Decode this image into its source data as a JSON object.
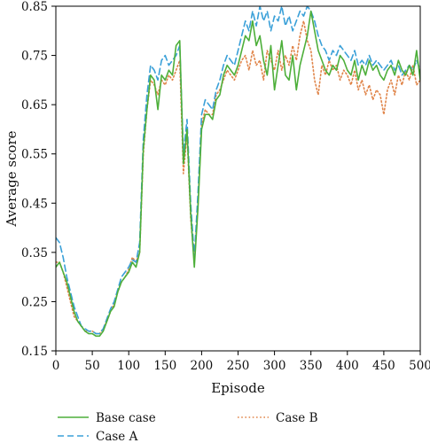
{
  "chart_data": {
    "type": "line",
    "xlabel": "Episode",
    "ylabel": "Average score",
    "xlim": [
      0,
      500
    ],
    "ylim": [
      0.15,
      0.85
    ],
    "x_ticks": [
      "0",
      "50",
      "100",
      "150",
      "200",
      "250",
      "300",
      "350",
      "400",
      "450",
      "500"
    ],
    "y_ticks": [
      "0.15",
      "0.25",
      "0.35",
      "0.45",
      "0.55",
      "0.65",
      "0.75",
      "0.85"
    ],
    "legend_position": "below",
    "series": [
      {
        "name": "Base case",
        "color": "#4daf3a",
        "style": "solid",
        "points": [
          [
            0,
            0.32
          ],
          [
            5,
            0.33
          ],
          [
            10,
            0.31
          ],
          [
            15,
            0.29
          ],
          [
            20,
            0.26
          ],
          [
            25,
            0.23
          ],
          [
            30,
            0.21
          ],
          [
            35,
            0.2
          ],
          [
            40,
            0.19
          ],
          [
            45,
            0.185
          ],
          [
            50,
            0.185
          ],
          [
            55,
            0.18
          ],
          [
            60,
            0.18
          ],
          [
            65,
            0.19
          ],
          [
            70,
            0.21
          ],
          [
            75,
            0.23
          ],
          [
            80,
            0.24
          ],
          [
            85,
            0.27
          ],
          [
            90,
            0.29
          ],
          [
            95,
            0.3
          ],
          [
            100,
            0.31
          ],
          [
            105,
            0.33
          ],
          [
            110,
            0.32
          ],
          [
            115,
            0.35
          ],
          [
            120,
            0.56
          ],
          [
            125,
            0.64
          ],
          [
            130,
            0.71
          ],
          [
            135,
            0.7
          ],
          [
            140,
            0.64
          ],
          [
            145,
            0.71
          ],
          [
            150,
            0.7
          ],
          [
            155,
            0.72
          ],
          [
            160,
            0.71
          ],
          [
            165,
            0.77
          ],
          [
            170,
            0.78
          ],
          [
            175,
            0.53
          ],
          [
            180,
            0.6
          ],
          [
            185,
            0.43
          ],
          [
            190,
            0.32
          ],
          [
            195,
            0.44
          ],
          [
            200,
            0.6
          ],
          [
            205,
            0.63
          ],
          [
            210,
            0.63
          ],
          [
            215,
            0.62
          ],
          [
            220,
            0.66
          ],
          [
            225,
            0.67
          ],
          [
            230,
            0.71
          ],
          [
            235,
            0.73
          ],
          [
            240,
            0.72
          ],
          [
            245,
            0.71
          ],
          [
            250,
            0.73
          ],
          [
            255,
            0.76
          ],
          [
            260,
            0.79
          ],
          [
            265,
            0.78
          ],
          [
            270,
            0.82
          ],
          [
            275,
            0.77
          ],
          [
            280,
            0.79
          ],
          [
            285,
            0.74
          ],
          [
            290,
            0.71
          ],
          [
            295,
            0.77
          ],
          [
            300,
            0.68
          ],
          [
            305,
            0.73
          ],
          [
            310,
            0.78
          ],
          [
            315,
            0.71
          ],
          [
            320,
            0.7
          ],
          [
            325,
            0.75
          ],
          [
            330,
            0.68
          ],
          [
            335,
            0.73
          ],
          [
            340,
            0.76
          ],
          [
            345,
            0.79
          ],
          [
            350,
            0.84
          ],
          [
            355,
            0.8
          ],
          [
            360,
            0.76
          ],
          [
            365,
            0.74
          ],
          [
            370,
            0.72
          ],
          [
            375,
            0.71
          ],
          [
            380,
            0.73
          ],
          [
            385,
            0.72
          ],
          [
            390,
            0.75
          ],
          [
            395,
            0.74
          ],
          [
            400,
            0.72
          ],
          [
            405,
            0.71
          ],
          [
            410,
            0.74
          ],
          [
            415,
            0.7
          ],
          [
            420,
            0.73
          ],
          [
            425,
            0.71
          ],
          [
            430,
            0.74
          ],
          [
            435,
            0.72
          ],
          [
            440,
            0.73
          ],
          [
            445,
            0.71
          ],
          [
            450,
            0.7
          ],
          [
            455,
            0.72
          ],
          [
            460,
            0.73
          ],
          [
            465,
            0.71
          ],
          [
            470,
            0.74
          ],
          [
            475,
            0.72
          ],
          [
            480,
            0.71
          ],
          [
            485,
            0.73
          ],
          [
            490,
            0.71
          ],
          [
            495,
            0.76
          ],
          [
            500,
            0.7
          ]
        ]
      },
      {
        "name": "Case A",
        "color": "#3aa0d8",
        "style": "dashed",
        "points": [
          [
            0,
            0.38
          ],
          [
            5,
            0.37
          ],
          [
            10,
            0.34
          ],
          [
            15,
            0.3
          ],
          [
            20,
            0.27
          ],
          [
            25,
            0.24
          ],
          [
            30,
            0.22
          ],
          [
            35,
            0.2
          ],
          [
            40,
            0.195
          ],
          [
            45,
            0.19
          ],
          [
            50,
            0.19
          ],
          [
            55,
            0.185
          ],
          [
            60,
            0.185
          ],
          [
            65,
            0.195
          ],
          [
            70,
            0.215
          ],
          [
            75,
            0.235
          ],
          [
            80,
            0.25
          ],
          [
            85,
            0.275
          ],
          [
            90,
            0.3
          ],
          [
            95,
            0.31
          ],
          [
            100,
            0.32
          ],
          [
            105,
            0.335
          ],
          [
            110,
            0.33
          ],
          [
            115,
            0.37
          ],
          [
            120,
            0.58
          ],
          [
            125,
            0.67
          ],
          [
            130,
            0.73
          ],
          [
            135,
            0.72
          ],
          [
            140,
            0.7
          ],
          [
            145,
            0.74
          ],
          [
            150,
            0.75
          ],
          [
            155,
            0.73
          ],
          [
            160,
            0.74
          ],
          [
            165,
            0.75
          ],
          [
            170,
            0.77
          ],
          [
            175,
            0.55
          ],
          [
            180,
            0.62
          ],
          [
            185,
            0.45
          ],
          [
            190,
            0.34
          ],
          [
            195,
            0.47
          ],
          [
            200,
            0.63
          ],
          [
            205,
            0.66
          ],
          [
            210,
            0.65
          ],
          [
            215,
            0.64
          ],
          [
            220,
            0.68
          ],
          [
            225,
            0.7
          ],
          [
            230,
            0.73
          ],
          [
            235,
            0.75
          ],
          [
            240,
            0.74
          ],
          [
            245,
            0.73
          ],
          [
            250,
            0.76
          ],
          [
            255,
            0.79
          ],
          [
            260,
            0.82
          ],
          [
            265,
            0.8
          ],
          [
            270,
            0.84
          ],
          [
            275,
            0.81
          ],
          [
            280,
            0.85
          ],
          [
            285,
            0.82
          ],
          [
            290,
            0.84
          ],
          [
            295,
            0.8
          ],
          [
            300,
            0.83
          ],
          [
            305,
            0.82
          ],
          [
            310,
            0.85
          ],
          [
            315,
            0.81
          ],
          [
            320,
            0.83
          ],
          [
            325,
            0.8
          ],
          [
            330,
            0.82
          ],
          [
            335,
            0.84
          ],
          [
            340,
            0.83
          ],
          [
            345,
            0.85
          ],
          [
            350,
            0.84
          ],
          [
            355,
            0.82
          ],
          [
            360,
            0.79
          ],
          [
            365,
            0.77
          ],
          [
            370,
            0.76
          ],
          [
            375,
            0.74
          ],
          [
            380,
            0.76
          ],
          [
            385,
            0.75
          ],
          [
            390,
            0.77
          ],
          [
            395,
            0.76
          ],
          [
            400,
            0.75
          ],
          [
            405,
            0.74
          ],
          [
            410,
            0.76
          ],
          [
            415,
            0.73
          ],
          [
            420,
            0.74
          ],
          [
            425,
            0.73
          ],
          [
            430,
            0.75
          ],
          [
            435,
            0.73
          ],
          [
            440,
            0.74
          ],
          [
            445,
            0.73
          ],
          [
            450,
            0.72
          ],
          [
            455,
            0.73
          ],
          [
            460,
            0.74
          ],
          [
            465,
            0.72
          ],
          [
            470,
            0.73
          ],
          [
            475,
            0.71
          ],
          [
            480,
            0.72
          ],
          [
            485,
            0.73
          ],
          [
            490,
            0.72
          ],
          [
            495,
            0.74
          ],
          [
            500,
            0.72
          ]
        ]
      },
      {
        "name": "Case B",
        "color": "#e0854a",
        "style": "dotted",
        "points": [
          [
            0,
            0.33
          ],
          [
            5,
            0.33
          ],
          [
            10,
            0.31
          ],
          [
            15,
            0.28
          ],
          [
            20,
            0.25
          ],
          [
            25,
            0.22
          ],
          [
            30,
            0.21
          ],
          [
            35,
            0.2
          ],
          [
            40,
            0.19
          ],
          [
            45,
            0.19
          ],
          [
            50,
            0.19
          ],
          [
            55,
            0.185
          ],
          [
            60,
            0.185
          ],
          [
            65,
            0.195
          ],
          [
            70,
            0.21
          ],
          [
            75,
            0.23
          ],
          [
            80,
            0.245
          ],
          [
            85,
            0.27
          ],
          [
            90,
            0.29
          ],
          [
            95,
            0.3
          ],
          [
            100,
            0.315
          ],
          [
            105,
            0.34
          ],
          [
            110,
            0.33
          ],
          [
            115,
            0.35
          ],
          [
            120,
            0.55
          ],
          [
            125,
            0.64
          ],
          [
            130,
            0.7
          ],
          [
            135,
            0.69
          ],
          [
            140,
            0.67
          ],
          [
            145,
            0.7
          ],
          [
            150,
            0.69
          ],
          [
            155,
            0.71
          ],
          [
            160,
            0.7
          ],
          [
            165,
            0.72
          ],
          [
            170,
            0.74
          ],
          [
            175,
            0.51
          ],
          [
            180,
            0.59
          ],
          [
            185,
            0.42
          ],
          [
            190,
            0.33
          ],
          [
            195,
            0.45
          ],
          [
            200,
            0.61
          ],
          [
            205,
            0.64
          ],
          [
            210,
            0.63
          ],
          [
            215,
            0.63
          ],
          [
            220,
            0.67
          ],
          [
            225,
            0.68
          ],
          [
            230,
            0.7
          ],
          [
            235,
            0.72
          ],
          [
            240,
            0.71
          ],
          [
            245,
            0.7
          ],
          [
            250,
            0.72
          ],
          [
            255,
            0.74
          ],
          [
            260,
            0.75
          ],
          [
            265,
            0.72
          ],
          [
            270,
            0.76
          ],
          [
            275,
            0.73
          ],
          [
            280,
            0.74
          ],
          [
            285,
            0.7
          ],
          [
            290,
            0.76
          ],
          [
            295,
            0.74
          ],
          [
            300,
            0.72
          ],
          [
            305,
            0.76
          ],
          [
            310,
            0.72
          ],
          [
            315,
            0.75
          ],
          [
            320,
            0.73
          ],
          [
            325,
            0.77
          ],
          [
            330,
            0.74
          ],
          [
            335,
            0.79
          ],
          [
            340,
            0.82
          ],
          [
            345,
            0.78
          ],
          [
            350,
            0.76
          ],
          [
            355,
            0.7
          ],
          [
            360,
            0.67
          ],
          [
            365,
            0.73
          ],
          [
            370,
            0.71
          ],
          [
            375,
            0.74
          ],
          [
            380,
            0.72
          ],
          [
            385,
            0.73
          ],
          [
            390,
            0.7
          ],
          [
            395,
            0.72
          ],
          [
            400,
            0.71
          ],
          [
            405,
            0.69
          ],
          [
            410,
            0.72
          ],
          [
            415,
            0.68
          ],
          [
            420,
            0.7
          ],
          [
            425,
            0.67
          ],
          [
            430,
            0.69
          ],
          [
            435,
            0.66
          ],
          [
            440,
            0.68
          ],
          [
            445,
            0.67
          ],
          [
            450,
            0.63
          ],
          [
            455,
            0.68
          ],
          [
            460,
            0.7
          ],
          [
            465,
            0.67
          ],
          [
            470,
            0.71
          ],
          [
            475,
            0.69
          ],
          [
            480,
            0.72
          ],
          [
            485,
            0.7
          ],
          [
            490,
            0.73
          ],
          [
            495,
            0.69
          ],
          [
            500,
            0.7
          ]
        ]
      }
    ]
  }
}
